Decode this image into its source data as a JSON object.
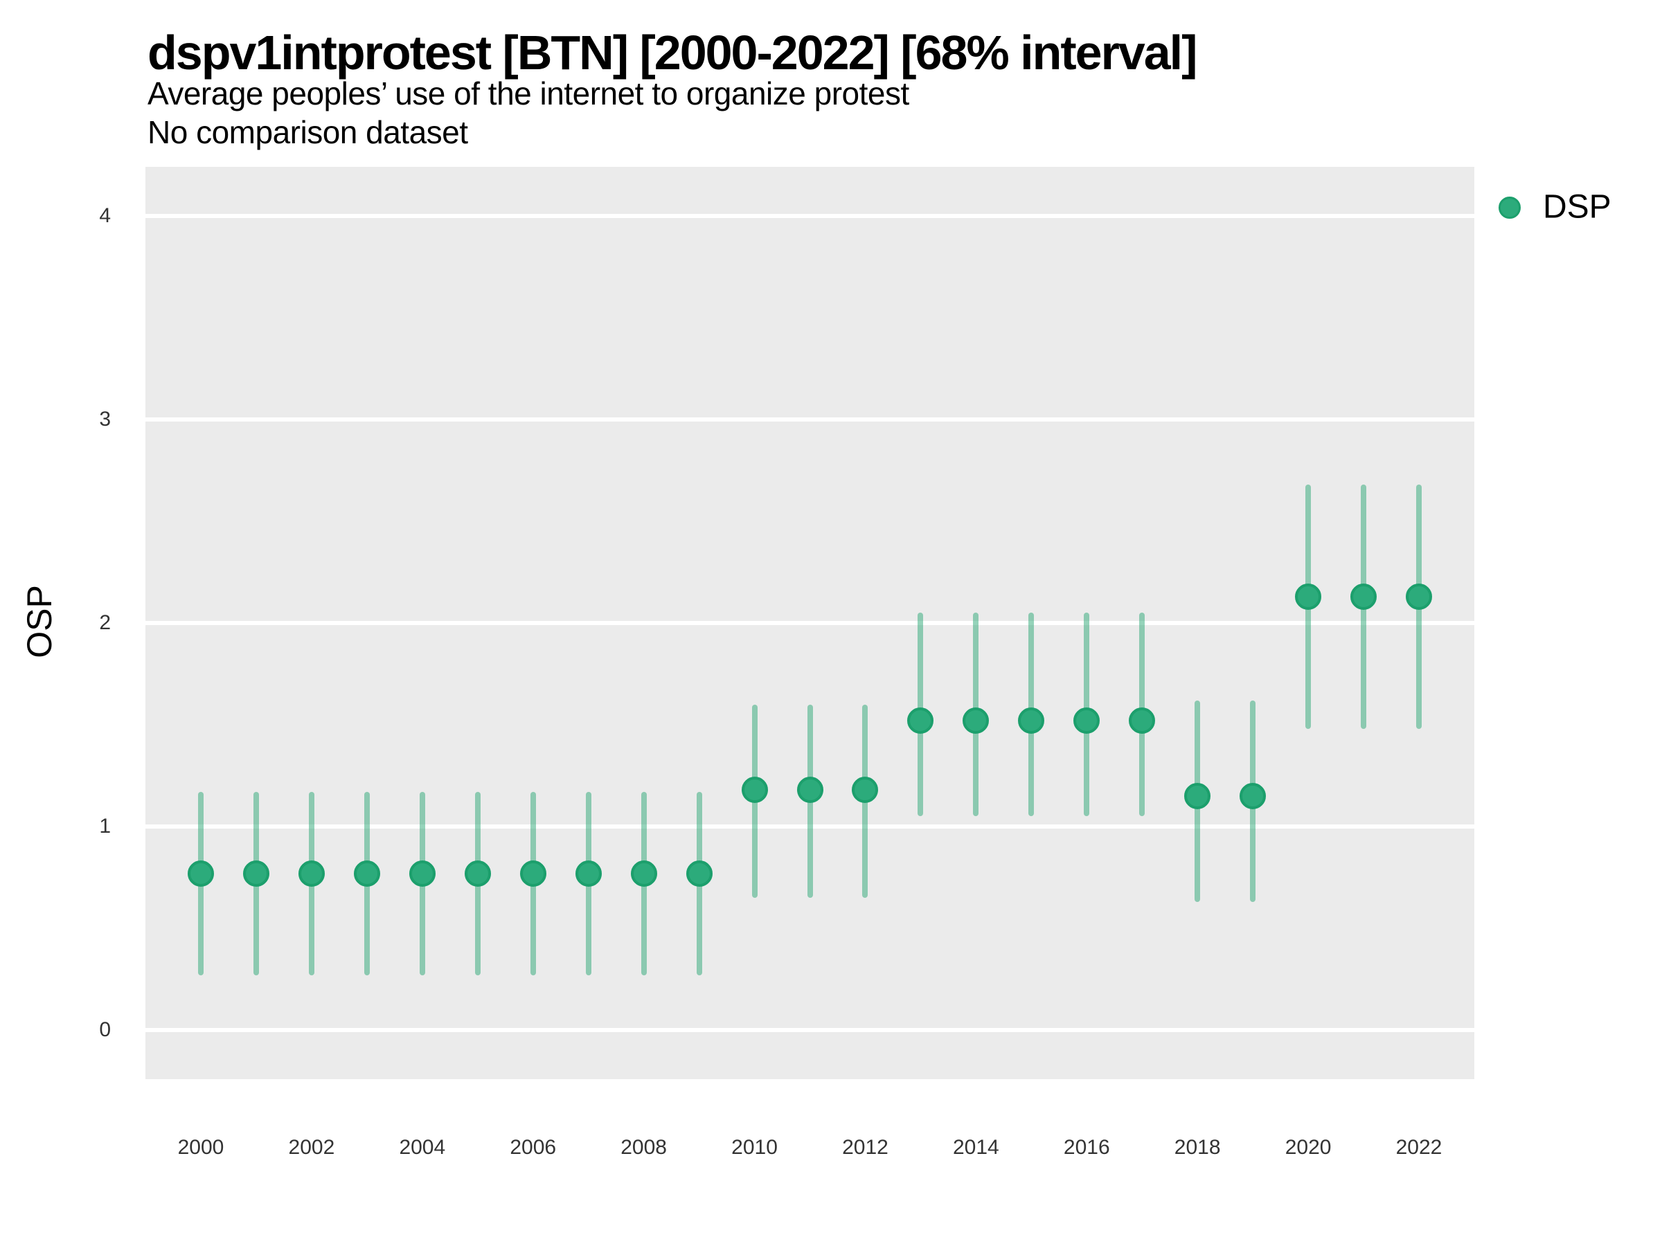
{
  "header": {
    "title": "dspv1intprotest [BTN] [2000-2022] [68% interval]",
    "subtitle": "Average peoples’ use of the internet to organize protest",
    "subtitle2": "No comparison dataset"
  },
  "legend": {
    "items": [
      {
        "label": "DSP",
        "color": "#2cab7b"
      }
    ],
    "position": "right-top"
  },
  "colors": {
    "panel_background": "#ebebeb",
    "gridline": "#ffffff",
    "point_fill": "#2cab7b",
    "point_stroke": "#1c9f6c",
    "interval_bar": "rgba(44,168,118,0.5)",
    "text": "#000000",
    "tick_text": "#333333"
  },
  "chart_data": {
    "type": "scatter",
    "subtype": "pointrange",
    "title": "dspv1intprotest [BTN] [2000-2022] [68% interval]",
    "subtitle": "Average peoples’ use of the internet to organize protest",
    "note": "No comparison dataset",
    "xlabel": "",
    "ylabel": "OSP",
    "interval": "68%",
    "xlim": [
      2000,
      2022
    ],
    "ylim": [
      0,
      4
    ],
    "grid": "major-horizontal-only",
    "legend_position": "right",
    "y_ticks": [
      0,
      1,
      2,
      3,
      4
    ],
    "x_ticks": [
      2000,
      2002,
      2004,
      2006,
      2008,
      2010,
      2012,
      2014,
      2016,
      2018,
      2020,
      2022
    ],
    "series": [
      {
        "name": "DSP",
        "points": [
          {
            "year": 2000,
            "est": 0.77,
            "lo": 0.27,
            "hi": 1.17
          },
          {
            "year": 2001,
            "est": 0.77,
            "lo": 0.27,
            "hi": 1.17
          },
          {
            "year": 2002,
            "est": 0.77,
            "lo": 0.27,
            "hi": 1.17
          },
          {
            "year": 2003,
            "est": 0.77,
            "lo": 0.27,
            "hi": 1.17
          },
          {
            "year": 2004,
            "est": 0.77,
            "lo": 0.27,
            "hi": 1.17
          },
          {
            "year": 2005,
            "est": 0.77,
            "lo": 0.27,
            "hi": 1.17
          },
          {
            "year": 2006,
            "est": 0.77,
            "lo": 0.27,
            "hi": 1.17
          },
          {
            "year": 2007,
            "est": 0.77,
            "lo": 0.27,
            "hi": 1.17
          },
          {
            "year": 2008,
            "est": 0.77,
            "lo": 0.27,
            "hi": 1.17
          },
          {
            "year": 2009,
            "est": 0.77,
            "lo": 0.27,
            "hi": 1.17
          },
          {
            "year": 2010,
            "est": 1.18,
            "lo": 0.65,
            "hi": 1.6
          },
          {
            "year": 2011,
            "est": 1.18,
            "lo": 0.65,
            "hi": 1.6
          },
          {
            "year": 2012,
            "est": 1.18,
            "lo": 0.65,
            "hi": 1.6
          },
          {
            "year": 2013,
            "est": 1.52,
            "lo": 1.05,
            "hi": 2.05
          },
          {
            "year": 2014,
            "est": 1.52,
            "lo": 1.05,
            "hi": 2.05
          },
          {
            "year": 2015,
            "est": 1.52,
            "lo": 1.05,
            "hi": 2.05
          },
          {
            "year": 2016,
            "est": 1.52,
            "lo": 1.05,
            "hi": 2.05
          },
          {
            "year": 2017,
            "est": 1.52,
            "lo": 1.05,
            "hi": 2.05
          },
          {
            "year": 2018,
            "est": 1.15,
            "lo": 0.63,
            "hi": 1.62
          },
          {
            "year": 2019,
            "est": 1.15,
            "lo": 0.63,
            "hi": 1.62
          },
          {
            "year": 2020,
            "est": 2.13,
            "lo": 1.48,
            "hi": 2.68
          },
          {
            "year": 2021,
            "est": 2.13,
            "lo": 1.48,
            "hi": 2.68
          },
          {
            "year": 2022,
            "est": 2.13,
            "lo": 1.48,
            "hi": 2.68
          }
        ]
      }
    ]
  }
}
